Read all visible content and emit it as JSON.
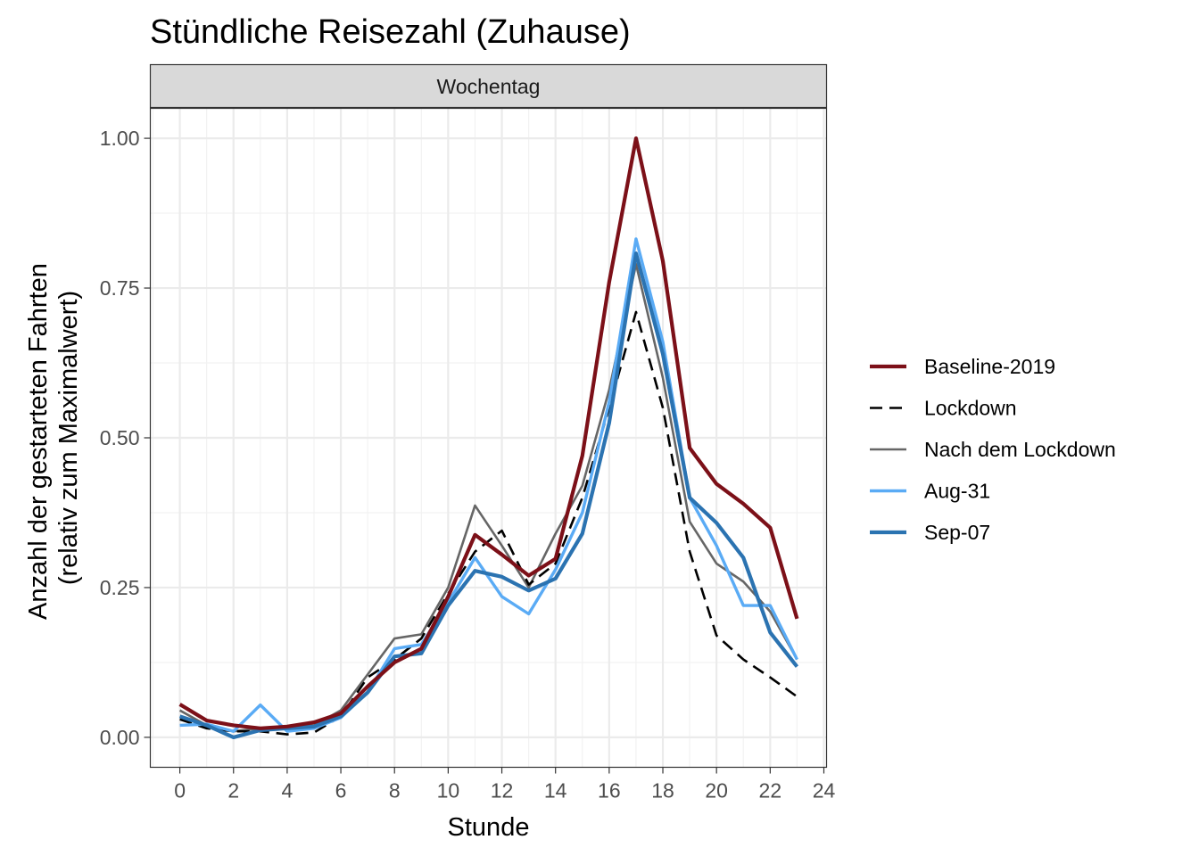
{
  "chart_data": {
    "type": "line",
    "title": "Stündliche Reisezahl (Zuhause)",
    "facet": "Wochentag",
    "xlabel": "Stunde",
    "ylabel_lines": [
      "Anzahl der gestarteten Fahrten",
      "(relativ zum Maximalwert)"
    ],
    "xlim": [
      -1.1,
      24.1
    ],
    "ylim": [
      -0.05,
      1.05
    ],
    "x_ticks": [
      0,
      2,
      4,
      6,
      8,
      10,
      12,
      14,
      16,
      18,
      20,
      22,
      24
    ],
    "x_tick_labels": [
      "0",
      "2",
      "4",
      "6",
      "8",
      "10",
      "12",
      "14",
      "16",
      "18",
      "20",
      "22",
      "24"
    ],
    "y_ticks": [
      0,
      0.25,
      0.5,
      0.75,
      1.0
    ],
    "y_tick_labels": [
      "0.00",
      "0.25",
      "0.50",
      "0.75",
      "1.00"
    ],
    "grid": true,
    "legend_position": "right",
    "x": [
      0,
      1,
      2,
      3,
      4,
      5,
      6,
      7,
      8,
      9,
      10,
      11,
      12,
      13,
      14,
      15,
      16,
      17,
      18,
      19,
      20,
      21,
      22,
      23
    ],
    "series": [
      {
        "name": "Nach dem Lockdown",
        "color": "#666666",
        "dash": "solid",
        "width": 2.6,
        "values": [
          0.045,
          0.02,
          0.01,
          0.015,
          0.015,
          0.02,
          0.045,
          0.105,
          0.165,
          0.172,
          0.25,
          0.387,
          0.32,
          0.25,
          0.34,
          0.42,
          0.58,
          0.79,
          0.6,
          0.36,
          0.29,
          0.26,
          0.21,
          0.13
        ]
      },
      {
        "name": "Lockdown",
        "color": "#000000",
        "dash": "14,8",
        "width": 2.6,
        "values": [
          0.03,
          0.015,
          0.01,
          0.01,
          0.005,
          0.008,
          0.035,
          0.1,
          0.13,
          0.165,
          0.24,
          0.31,
          0.345,
          0.255,
          0.29,
          0.4,
          0.55,
          0.71,
          0.55,
          0.31,
          0.17,
          0.13,
          0.1,
          0.068
        ]
      },
      {
        "name": "Aug-31",
        "color": "#5aabf5",
        "dash": "solid",
        "width": 3.4,
        "values": [
          0.02,
          0.022,
          0.01,
          0.054,
          0.01,
          0.015,
          0.033,
          0.075,
          0.148,
          0.155,
          0.225,
          0.3,
          0.235,
          0.206,
          0.28,
          0.375,
          0.56,
          0.832,
          0.66,
          0.4,
          0.32,
          0.22,
          0.22,
          0.13
        ]
      },
      {
        "name": "Sep-07",
        "color": "#2b73b1",
        "dash": "solid",
        "width": 4.2,
        "values": [
          0.035,
          0.02,
          0.0,
          0.012,
          0.015,
          0.018,
          0.035,
          0.075,
          0.135,
          0.14,
          0.22,
          0.278,
          0.268,
          0.245,
          0.265,
          0.34,
          0.525,
          0.808,
          0.64,
          0.4,
          0.358,
          0.3,
          0.175,
          0.118
        ]
      },
      {
        "name": "Baseline-2019",
        "color": "#7c1018",
        "dash": "solid",
        "width": 4.2,
        "values": [
          0.055,
          0.028,
          0.02,
          0.015,
          0.018,
          0.025,
          0.04,
          0.085,
          0.125,
          0.148,
          0.235,
          0.338,
          0.305,
          0.27,
          0.298,
          0.47,
          0.76,
          1.0,
          0.795,
          0.483,
          0.423,
          0.39,
          0.35,
          0.198
        ]
      }
    ],
    "legend_order": [
      "Baseline-2019",
      "Lockdown",
      "Nach dem Lockdown",
      "Aug-31",
      "Sep-07"
    ]
  }
}
